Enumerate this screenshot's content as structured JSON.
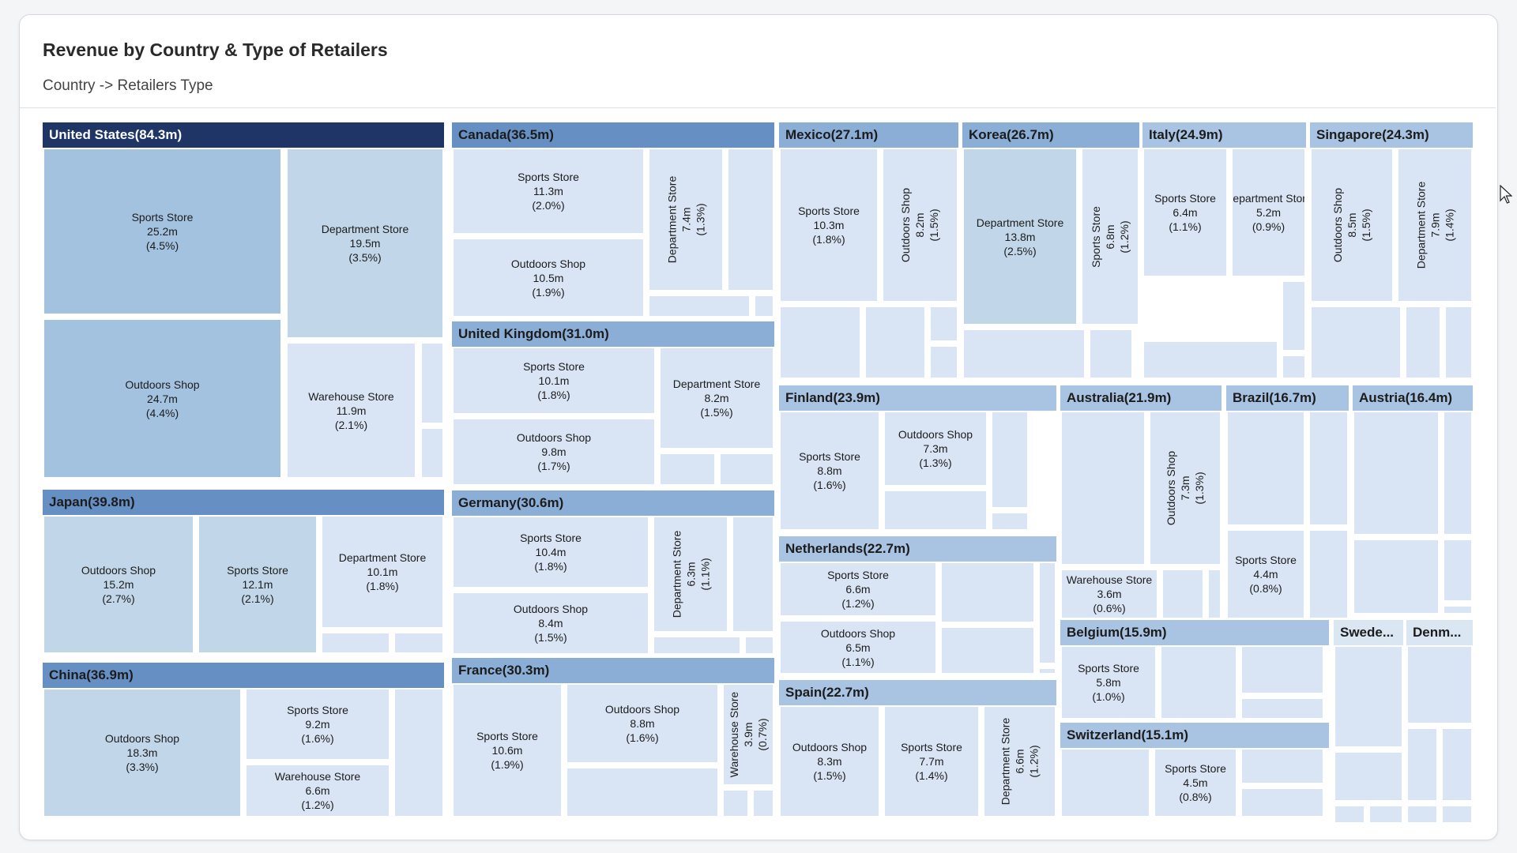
{
  "header": {
    "title": "Revenue by Country & Type of Retailers",
    "subtitle": "Country -> Retailers Type"
  },
  "colors": {
    "dark_header": "#1e3566",
    "header_mid": "#6690c4",
    "header_light": "#8aaed6",
    "header_lighter": "#a9c3e2",
    "tile_strong": "#a3c2df",
    "tile_medium": "#c1d7e9",
    "tile_light": "#d9e5f4"
  },
  "chart_data": {
    "type": "treemap",
    "title": "Revenue by Country & Type of Retailers",
    "subtitle": "Country -> Retailers Type",
    "unit": "m",
    "groups": [
      {
        "name": "United States",
        "label": "United States(84.3m)",
        "value": 84.3,
        "children": [
          {
            "name": "Sports Store",
            "value": 25.2,
            "share": "(4.5%)"
          },
          {
            "name": "Department Store",
            "value": 19.5,
            "share": "(3.5%)"
          },
          {
            "name": "Outdoors Shop",
            "value": 24.7,
            "share": "(4.4%)"
          },
          {
            "name": "Warehouse Store",
            "value": 11.9,
            "share": "(2.1%)"
          }
        ]
      },
      {
        "name": "Japan",
        "label": "Japan(39.8m)",
        "value": 39.8,
        "children": [
          {
            "name": "Outdoors Shop",
            "value": 15.2,
            "share": "(2.7%)"
          },
          {
            "name": "Sports Store",
            "value": 12.1,
            "share": "(2.1%)"
          },
          {
            "name": "Department Store",
            "value": 10.1,
            "share": "(1.8%)"
          }
        ]
      },
      {
        "name": "China",
        "label": "China(36.9m)",
        "value": 36.9,
        "children": [
          {
            "name": "Outdoors Shop",
            "value": 18.3,
            "share": "(3.3%)"
          },
          {
            "name": "Sports Store",
            "value": 9.2,
            "share": "(1.6%)"
          },
          {
            "name": "Warehouse Store",
            "value": 6.6,
            "share": "(1.2%)"
          }
        ]
      },
      {
        "name": "Canada",
        "label": "Canada(36.5m)",
        "value": 36.5,
        "children": [
          {
            "name": "Sports Store",
            "value": 11.3,
            "share": "(2.0%)"
          },
          {
            "name": "Department Store",
            "value": 7.4,
            "share": "(1.3%)"
          },
          {
            "name": "Outdoors Shop",
            "value": 10.5,
            "share": "(1.9%)"
          }
        ]
      },
      {
        "name": "United Kingdom",
        "label": "United Kingdom(31.0m)",
        "value": 31.0,
        "children": [
          {
            "name": "Sports Store",
            "value": 10.1,
            "share": "(1.8%)"
          },
          {
            "name": "Department Store",
            "value": 8.2,
            "share": "(1.5%)"
          },
          {
            "name": "Outdoors Shop",
            "value": 9.8,
            "share": "(1.7%)"
          }
        ]
      },
      {
        "name": "Germany",
        "label": "Germany(30.6m)",
        "value": 30.6,
        "children": [
          {
            "name": "Sports Store",
            "value": 10.4,
            "share": "(1.8%)"
          },
          {
            "name": "Department Store",
            "value": 6.3,
            "share": "(1.1%)"
          },
          {
            "name": "Outdoors Shop",
            "value": 8.4,
            "share": "(1.5%)"
          }
        ]
      },
      {
        "name": "France",
        "label": "France(30.3m)",
        "value": 30.3,
        "children": [
          {
            "name": "Sports Store",
            "value": 10.6,
            "share": "(1.9%)"
          },
          {
            "name": "Outdoors Shop",
            "value": 8.8,
            "share": "(1.6%)"
          },
          {
            "name": "Warehouse Store",
            "value": 3.9,
            "share": "(0.7%)"
          }
        ]
      },
      {
        "name": "Mexico",
        "label": "Mexico(27.1m)",
        "value": 27.1,
        "children": [
          {
            "name": "Sports Store",
            "value": 10.3,
            "share": "(1.8%)"
          },
          {
            "name": "Outdoors Shop",
            "value": 8.2,
            "share": "(1.5%)"
          }
        ]
      },
      {
        "name": "Korea",
        "label": "Korea(26.7m)",
        "value": 26.7,
        "children": [
          {
            "name": "Department Store",
            "value": 13.8,
            "share": "(2.5%)"
          },
          {
            "name": "Sports Store",
            "value": 6.8,
            "share": "(1.2%)"
          }
        ]
      },
      {
        "name": "Italy",
        "label": "Italy(24.9m)",
        "value": 24.9,
        "children": [
          {
            "name": "Sports Store",
            "value": 6.4,
            "share": "(1.1%)"
          },
          {
            "name": "Department Store",
            "value": 5.2,
            "share": "(0.9%)"
          }
        ]
      },
      {
        "name": "Singapore",
        "label": "Singapore(24.3m)",
        "value": 24.3,
        "children": [
          {
            "name": "Outdoors Shop",
            "value": 8.5,
            "share": "(1.5%)"
          },
          {
            "name": "Department Store",
            "value": 7.9,
            "share": "(1.4%)"
          }
        ]
      },
      {
        "name": "Finland",
        "label": "Finland(23.9m)",
        "value": 23.9,
        "children": [
          {
            "name": "Sports Store",
            "value": 8.8,
            "share": "(1.6%)"
          },
          {
            "name": "Outdoors Shop",
            "value": 7.3,
            "share": "(1.3%)"
          }
        ]
      },
      {
        "name": "Netherlands",
        "label": "Netherlands(22.7m)",
        "value": 22.7,
        "children": [
          {
            "name": "Sports Store",
            "value": 6.6,
            "share": "(1.2%)"
          },
          {
            "name": "Outdoors Shop",
            "value": 6.5,
            "share": "(1.1%)"
          }
        ]
      },
      {
        "name": "Spain",
        "label": "Spain(22.7m)",
        "value": 22.7,
        "children": [
          {
            "name": "Outdoors Shop",
            "value": 8.3,
            "share": "(1.5%)"
          },
          {
            "name": "Sports Store",
            "value": 7.7,
            "share": "(1.4%)"
          },
          {
            "name": "Department Store",
            "value": 6.6,
            "share": "(1.2%)"
          }
        ]
      },
      {
        "name": "Australia",
        "label": "Australia(21.9m)",
        "value": 21.9,
        "children": [
          {
            "name": "Outdoors Shop",
            "value": 7.3,
            "share": "(1.3%)"
          },
          {
            "name": "Warehouse Store",
            "value": 3.6,
            "share": "(0.6%)"
          }
        ]
      },
      {
        "name": "Brazil",
        "label": "Brazil(16.7m)",
        "value": 16.7,
        "children": [
          {
            "name": "Sports Store",
            "value": 4.4,
            "share": "(0.8%)"
          }
        ]
      },
      {
        "name": "Austria",
        "label": "Austria(16.4m)",
        "value": 16.4,
        "children": []
      },
      {
        "name": "Belgium",
        "label": "Belgium(15.9m)",
        "value": 15.9,
        "children": [
          {
            "name": "Sports Store",
            "value": 5.8,
            "share": "(1.0%)"
          }
        ]
      },
      {
        "name": "Switzerland",
        "label": "Switzerland(15.1m)",
        "value": 15.1,
        "children": [
          {
            "name": "Sports Store",
            "value": 4.5,
            "share": "(0.8%)"
          }
        ]
      },
      {
        "name": "Swede...",
        "label": "Swede...",
        "children": []
      },
      {
        "name": "Denm...",
        "label": "Denm...",
        "children": []
      }
    ]
  }
}
